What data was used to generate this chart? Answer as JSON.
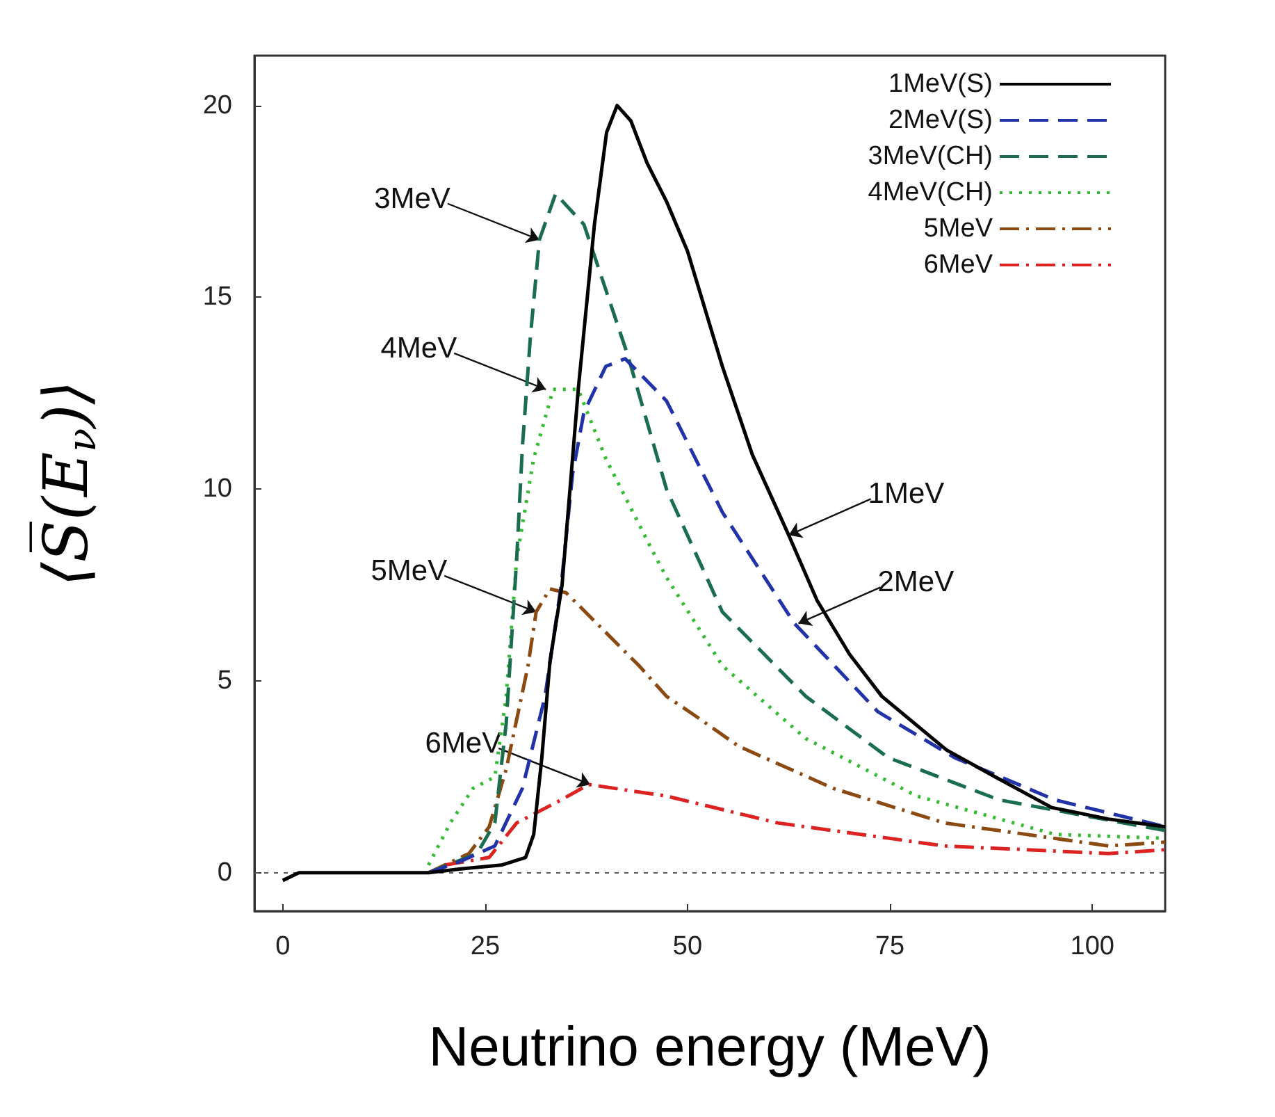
{
  "chart_data": {
    "type": "line",
    "xlabel": "Neutrino energy (MeV)",
    "ylabel": "⟨S̅(E$_{ν}$)⟩",
    "xlim": [
      -3.5,
      109
    ],
    "ylim": [
      -1,
      21.3
    ],
    "xticks": [
      0,
      25,
      50,
      75,
      100
    ],
    "yticks": [
      0,
      5,
      10,
      15,
      20
    ],
    "grid": false,
    "legend": "top right",
    "marker": "none",
    "series": [
      {
        "name": "1MeV(S)",
        "color": "#000000",
        "line_style": "solid",
        "x": [
          0,
          2,
          10,
          18,
          22,
          27,
          30,
          31,
          32,
          33,
          34.5,
          36.5,
          38.5,
          40,
          41.3,
          43,
          45,
          47.4,
          50,
          54.3,
          58,
          62.5,
          66,
          70,
          74,
          82,
          88,
          95,
          102,
          109
        ],
        "values": [
          -0.2,
          0,
          0,
          0,
          0.1,
          0.2,
          0.4,
          1,
          3,
          5.5,
          7.5,
          12.6,
          16.9,
          19.3,
          20,
          19.6,
          18.5,
          17.5,
          16.2,
          13.2,
          10.9,
          8.8,
          7.1,
          5.7,
          4.6,
          3.2,
          2.5,
          1.7,
          1.4,
          1.2
        ]
      },
      {
        "name": "2MeV(S)",
        "color": "#2233aa",
        "line_style": "dashed",
        "x": [
          18,
          22,
          26.2,
          29.6,
          32.4,
          34.4,
          35.8,
          37.2,
          39.9,
          42.3,
          47.4,
          54.3,
          63.2,
          73.5,
          83,
          95.4,
          109
        ],
        "values": [
          0,
          0.3,
          0.7,
          2.2,
          4.6,
          7.5,
          10.4,
          12,
          13.2,
          13.4,
          12.3,
          9.4,
          6.5,
          4.2,
          3,
          1.9,
          1.2
        ]
      },
      {
        "name": "3MeV(CH)",
        "color": "#1a6e4e",
        "line_style": "dashed",
        "x": [
          18,
          24,
          26.2,
          27.6,
          28.9,
          29.6,
          30.6,
          31.7,
          33.7,
          37.2,
          42.6,
          47.4,
          54.3,
          64.6,
          74.8,
          88.5,
          109
        ],
        "values": [
          0,
          0.5,
          1.3,
          3.9,
          8.2,
          11.1,
          14,
          16.5,
          17.7,
          16.9,
          13.5,
          10,
          6.8,
          4.6,
          3,
          1.9,
          1.1
        ]
      },
      {
        "name": "4MeV(CH)",
        "color": "#33bb33",
        "line_style": "dotted",
        "x": [
          18,
          20.7,
          23.5,
          26.2,
          27.6,
          28.9,
          31,
          33.4,
          36.5,
          39.9,
          45.4,
          47.4,
          54.3,
          64.6,
          78.3,
          95.4,
          109
        ],
        "values": [
          0.2,
          1.3,
          2.2,
          2.5,
          4.6,
          8.2,
          10.8,
          12.6,
          12.6,
          10.8,
          8.5,
          7.7,
          5.4,
          3.5,
          2,
          1,
          0.9
        ]
      },
      {
        "name": "5MeV",
        "color": "#8b4a12",
        "line_style": "dashdot",
        "x": [
          18,
          23,
          25.5,
          27.6,
          30.3,
          31.3,
          33,
          35,
          44,
          47.4,
          50.9,
          56.3,
          68,
          81.7,
          102,
          109
        ],
        "values": [
          0,
          0.5,
          1.2,
          2.7,
          5.4,
          6.8,
          7.4,
          7.3,
          5.4,
          4.6,
          4.1,
          3.3,
          2.2,
          1.3,
          0.7,
          0.8
        ]
      },
      {
        "name": "6MeV",
        "color": "#dd2222",
        "line_style": "dashdot",
        "x": [
          20,
          25.5,
          28.9,
          34.4,
          37.8,
          47.4,
          61.1,
          81.7,
          102,
          109
        ],
        "values": [
          0.2,
          0.4,
          1.3,
          1.9,
          2.3,
          2,
          1.3,
          0.7,
          0.5,
          0.6
        ]
      }
    ],
    "ref_lines": [
      {
        "axis": "y",
        "value": 0,
        "color": "#555555",
        "line_style": "dashed"
      }
    ],
    "annotations": [
      {
        "text": "3MeV",
        "x": 31.7,
        "y": 16.5
      },
      {
        "text": "4MeV",
        "x": 32.5,
        "y": 12.6
      },
      {
        "text": "5MeV",
        "x": 31.3,
        "y": 6.8
      },
      {
        "text": "6MeV",
        "x": 38,
        "y": 2.3
      },
      {
        "text": "1MeV",
        "x": 62.5,
        "y": 8.8
      },
      {
        "text": "2MeV",
        "x": 63.7,
        "y": 6.5
      }
    ]
  }
}
